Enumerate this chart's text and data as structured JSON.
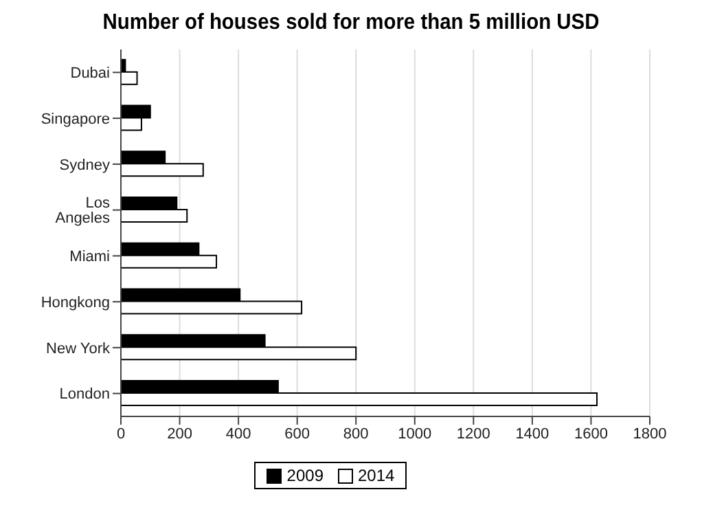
{
  "chart_data": {
    "type": "bar",
    "orientation": "horizontal",
    "title": "Number of houses sold for more than 5 million USD",
    "categories": [
      "Dubai",
      "Singapore",
      "Sydney",
      "Los Angeles",
      "Miami",
      "Hongkong",
      "New York",
      "London"
    ],
    "series": [
      {
        "name": "2009",
        "color": "#000000",
        "values": [
          15,
          100,
          150,
          190,
          265,
          405,
          490,
          535
        ]
      },
      {
        "name": "2014",
        "color": "#ffffff",
        "values": [
          55,
          70,
          280,
          225,
          325,
          615,
          800,
          1620
        ]
      }
    ],
    "xlim": [
      0,
      1800
    ],
    "xticks": [
      0,
      200,
      400,
      600,
      800,
      1000,
      1200,
      1400,
      1600,
      1800
    ],
    "grid": "x",
    "legend": "bottom"
  }
}
